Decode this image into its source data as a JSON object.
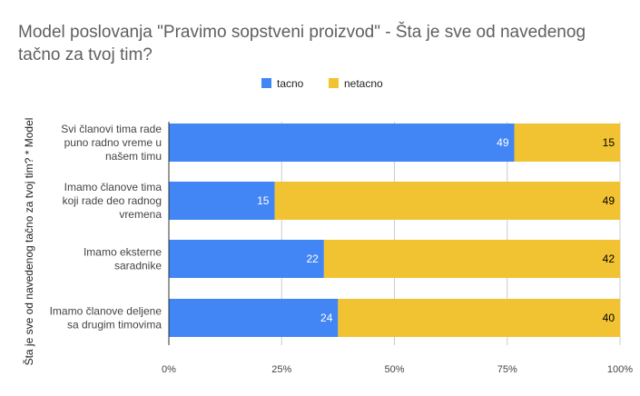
{
  "chart_data": {
    "type": "bar",
    "orientation": "horizontal",
    "stacking": "percent",
    "title_lines": [
      "Model poslovanja \"Pravimo sopstveni proizvod\" - Šta je sve od navedenog",
      "tačno za tvoj tim?"
    ],
    "ylabel": "Šta je sve od navedenog tačno za tvoj tim? * Model",
    "xlabel": "",
    "categories": [
      [
        "Svi članovi tima rade",
        "puno radno vreme u",
        "našem timu"
      ],
      [
        "Imamo članove tima",
        "koji rade deo radnog",
        "vremena"
      ],
      [
        "Imamo eksterne",
        "saradnike"
      ],
      [
        "Imamo članove deljene",
        "sa drugim timovima"
      ]
    ],
    "series": [
      {
        "name": "tacno",
        "color": "#4285f4",
        "values": [
          49,
          15,
          22,
          24
        ]
      },
      {
        "name": "netacno",
        "color": "#f1c232",
        "values": [
          15,
          49,
          42,
          40
        ]
      }
    ],
    "x_ticks": [
      "0%",
      "25%",
      "50%",
      "75%",
      "100%"
    ],
    "xlim": [
      0,
      100
    ],
    "legend_position": "top-center",
    "gridlines": true,
    "colors": {
      "gridline": "#cccccc",
      "axis_line": "#333333",
      "title": "#5f5f5f",
      "label_on_blue": "#ffffff",
      "label_on_yellow": "#000000"
    }
  }
}
